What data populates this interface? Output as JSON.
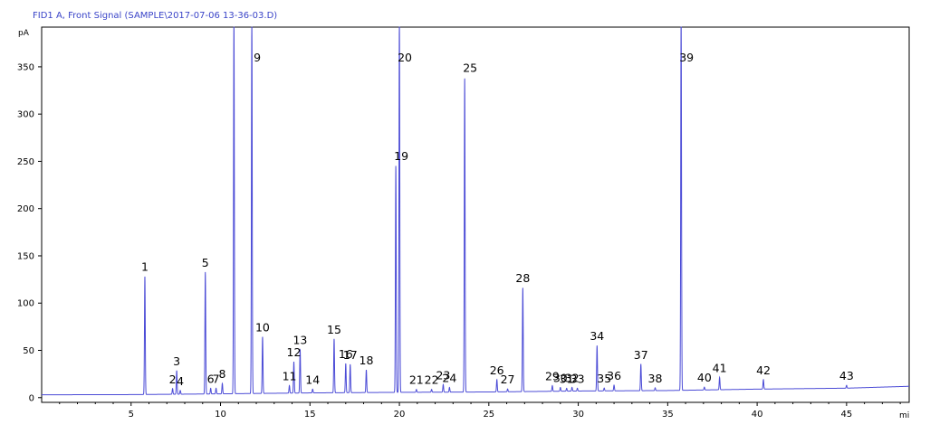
{
  "chart_data": {
    "type": "line",
    "title": "FID1 A, Front Signal (SAMPLE\\2017-07-06 13-36-03.D)",
    "ylabel": "pA",
    "xlabel": "mi",
    "xlim": [
      0,
      48.5
    ],
    "ylim": [
      -5,
      392
    ],
    "x_ticks": [
      5,
      10,
      15,
      20,
      25,
      30,
      35,
      40,
      45
    ],
    "y_ticks": [
      0,
      50,
      100,
      150,
      200,
      250,
      300,
      350
    ],
    "line_color": "#4b4bd6",
    "baseline": [
      [
        0,
        3
      ],
      [
        5,
        3.2
      ],
      [
        10,
        4
      ],
      [
        15,
        5
      ],
      [
        20,
        5.6
      ],
      [
        25,
        6
      ],
      [
        30,
        7
      ],
      [
        35,
        7.5
      ],
      [
        40,
        9
      ],
      [
        45,
        10
      ],
      [
        48.5,
        12
      ]
    ],
    "peaks": [
      {
        "label": "1",
        "x": 5.77,
        "height": 125
      },
      {
        "label": "2",
        "x": 7.32,
        "height": 6
      },
      {
        "label": "3",
        "x": 7.55,
        "height": 25
      },
      {
        "label": "4",
        "x": 7.75,
        "height": 4
      },
      {
        "label": "5",
        "x": 9.15,
        "height": 129
      },
      {
        "label": "6",
        "x": 9.45,
        "height": 6
      },
      {
        "label": "7",
        "x": 9.75,
        "height": 6
      },
      {
        "label": "8",
        "x": 10.1,
        "height": 11
      },
      {
        "label": "",
        "x": 10.75,
        "height": 400
      },
      {
        "label": "9",
        "x": 11.75,
        "height": 400
      },
      {
        "label": "10",
        "x": 12.35,
        "height": 60
      },
      {
        "label": "11",
        "x": 13.85,
        "height": 8
      },
      {
        "label": "12",
        "x": 14.1,
        "height": 33
      },
      {
        "label": "13",
        "x": 14.45,
        "height": 46
      },
      {
        "label": "14",
        "x": 15.15,
        "height": 4
      },
      {
        "label": "15",
        "x": 16.35,
        "height": 57
      },
      {
        "label": "16",
        "x": 17.0,
        "height": 31
      },
      {
        "label": "17",
        "x": 17.25,
        "height": 30
      },
      {
        "label": "18",
        "x": 18.15,
        "height": 24
      },
      {
        "label": "19",
        "x": 19.8,
        "height": 240
      },
      {
        "label": "20",
        "x": 20.0,
        "height": 400
      },
      {
        "label": "21",
        "x": 20.95,
        "height": 3
      },
      {
        "label": "22",
        "x": 21.8,
        "height": 3
      },
      {
        "label": "23",
        "x": 22.45,
        "height": 8
      },
      {
        "label": "24",
        "x": 22.8,
        "height": 5
      },
      {
        "label": "25",
        "x": 23.65,
        "height": 333
      },
      {
        "label": "26",
        "x": 25.45,
        "height": 13
      },
      {
        "label": "27",
        "x": 26.05,
        "height": 3
      },
      {
        "label": "28",
        "x": 26.9,
        "height": 110
      },
      {
        "label": "29",
        "x": 28.55,
        "height": 6
      },
      {
        "label": "30",
        "x": 29.0,
        "height": 4
      },
      {
        "label": "31",
        "x": 29.35,
        "height": 3
      },
      {
        "label": "32",
        "x": 29.65,
        "height": 4
      },
      {
        "label": "33",
        "x": 29.95,
        "height": 3
      },
      {
        "label": "34",
        "x": 31.05,
        "height": 48
      },
      {
        "label": "35",
        "x": 31.45,
        "height": 3
      },
      {
        "label": "36",
        "x": 32.0,
        "height": 6
      },
      {
        "label": "37",
        "x": 33.5,
        "height": 28
      },
      {
        "label": "38",
        "x": 34.3,
        "height": 3
      },
      {
        "label": "39",
        "x": 35.75,
        "height": 400
      },
      {
        "label": "40",
        "x": 37.05,
        "height": 3
      },
      {
        "label": "41",
        "x": 37.9,
        "height": 13
      },
      {
        "label": "42",
        "x": 40.35,
        "height": 10
      },
      {
        "label": "43",
        "x": 45.0,
        "height": 3
      }
    ]
  }
}
